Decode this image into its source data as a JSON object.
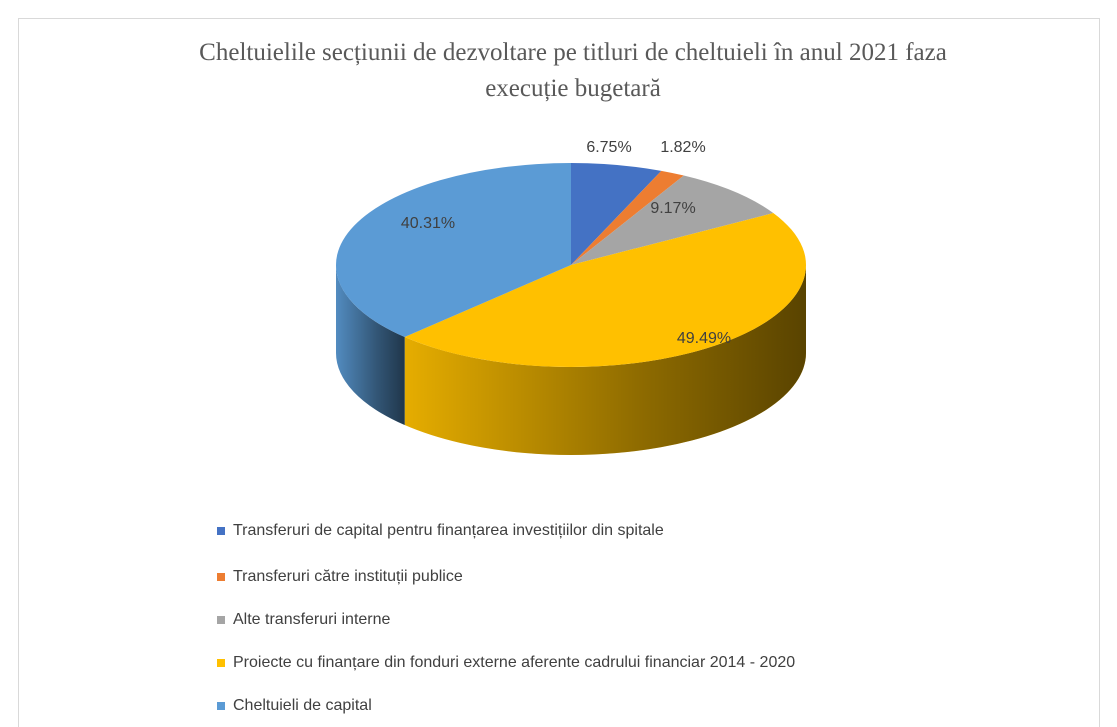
{
  "chart_data": {
    "type": "pie3d",
    "title": "Cheltuielile secțiunii de dezvoltare pe titluri de cheltuieli în anul 2021 faza execuție bugetară",
    "title_lines": [
      "Cheltuielile  secțiunii de dezvoltare pe titluri de cheltuieli în anul 2021  faza",
      "execuție bugetară"
    ],
    "categories": [
      "Transferuri de capital pentru finanțarea investițiilor din spitale",
      "Transferuri către instituții publice",
      "Alte transferuri interne",
      "Proiecte cu finanțare din fonduri externe aferente cadrului financiar 2014 - 2020",
      "Cheltuieli de capital"
    ],
    "values": [
      6.75,
      1.82,
      9.17,
      49.49,
      40.31
    ],
    "value_labels": [
      "6.75%",
      "1.82%",
      "9.17%",
      "49.49%",
      "40.31%"
    ],
    "colors": [
      "#4472c4",
      "#ed7d31",
      "#a5a5a5",
      "#ffc000",
      "#5b9bd5"
    ],
    "legend": "bottom"
  }
}
